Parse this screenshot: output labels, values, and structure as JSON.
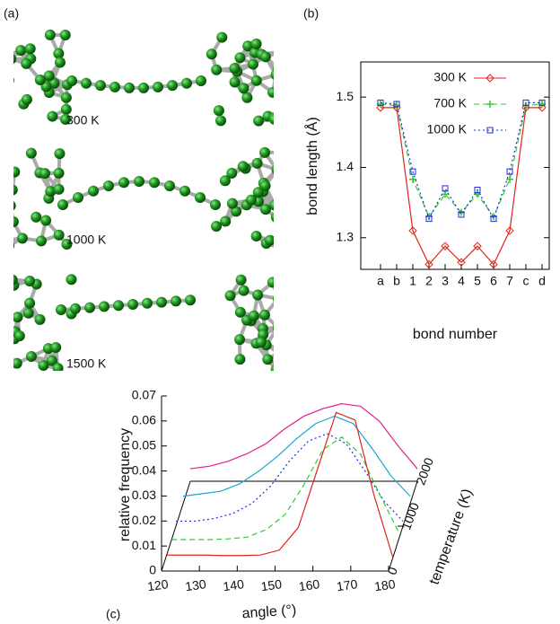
{
  "panel_labels": [
    "(a)",
    "(b)",
    "(c)"
  ],
  "structures": [
    "300 K",
    "1000 K",
    "1500 K"
  ],
  "chart_data": [
    {
      "type": "line",
      "xlabel": "bond number",
      "ylabel": "bond length (Å)",
      "categories": [
        "a",
        "b",
        "1",
        "2",
        "3",
        "4",
        "5",
        "6",
        "7",
        "c",
        "d"
      ],
      "ylim": [
        1.255,
        1.55
      ],
      "yticks": [
        1.3,
        1.4,
        1.5
      ],
      "legend": "top-right",
      "series": [
        {
          "name": "300 K",
          "color": "#e0241b",
          "line_style": "solid",
          "marker": "diamond",
          "values": [
            1.485,
            1.485,
            1.31,
            1.262,
            1.288,
            1.265,
            1.288,
            1.262,
            1.31,
            1.485,
            1.485
          ]
        },
        {
          "name": "700 K",
          "color": "#2fcc2f",
          "line_style": "dashed",
          "marker": "plus",
          "values": [
            1.49,
            1.488,
            1.383,
            1.33,
            1.362,
            1.336,
            1.362,
            1.33,
            1.383,
            1.488,
            1.49
          ]
        },
        {
          "name": "1000 K",
          "color": "#1f2fd0",
          "line_style": "dotted",
          "marker": "square",
          "values": [
            1.492,
            1.49,
            1.394,
            1.327,
            1.37,
            1.333,
            1.368,
            1.327,
            1.394,
            1.492,
            1.492
          ]
        }
      ]
    },
    {
      "type": "line3d",
      "xlabel": "angle (°)",
      "ylabel": "relative frequency",
      "zlabel": "temperature (K)",
      "x": [
        120,
        125,
        130,
        135,
        140,
        145,
        150,
        155,
        160,
        165,
        170,
        175,
        180
      ],
      "xlim": [
        120,
        180
      ],
      "xticks": [
        120,
        130,
        140,
        150,
        160,
        170,
        180
      ],
      "ylim": [
        0,
        0.07
      ],
      "yticks": [
        0,
        0.01,
        0.02,
        0.03,
        0.04,
        0.05,
        0.06,
        0.07
      ],
      "zlim": [
        0,
        2000
      ],
      "zticks": [
        0,
        1000,
        2000
      ],
      "series": [
        {
          "temperature": 2000,
          "color": "#e0208a",
          "line_style": "solid",
          "values": [
            0.005,
            0.006,
            0.008,
            0.011,
            0.015,
            0.021,
            0.026,
            0.029,
            0.031,
            0.03,
            0.024,
            0.014,
            0.005
          ]
        },
        {
          "temperature": 1500,
          "color": "#19a8d0",
          "line_style": "solid",
          "values": [
            0.003,
            0.004,
            0.005,
            0.008,
            0.013,
            0.019,
            0.026,
            0.032,
            0.035,
            0.032,
            0.022,
            0.011,
            0.003
          ]
        },
        {
          "temperature": 1000,
          "color": "#1f2fd0",
          "line_style": "dotted",
          "values": [
            0.002,
            0.002,
            0.003,
            0.005,
            0.009,
            0.016,
            0.026,
            0.034,
            0.037,
            0.033,
            0.022,
            0.01,
            0.002
          ]
        },
        {
          "temperature": 700,
          "color": "#2fcc2f",
          "line_style": "dashed",
          "values": [
            0,
            0,
            0,
            0.0003,
            0.001,
            0.004,
            0.01,
            0.022,
            0.036,
            0.041,
            0.034,
            0.018,
            0.003
          ]
        },
        {
          "temperature": 300,
          "color": "#e0241b",
          "line_style": "solid",
          "values": [
            0.001,
            0.001,
            0.001,
            0.0008,
            0.0008,
            0.001,
            0.003,
            0.012,
            0.035,
            0.058,
            0.055,
            0.025,
            0
          ]
        }
      ]
    }
  ]
}
